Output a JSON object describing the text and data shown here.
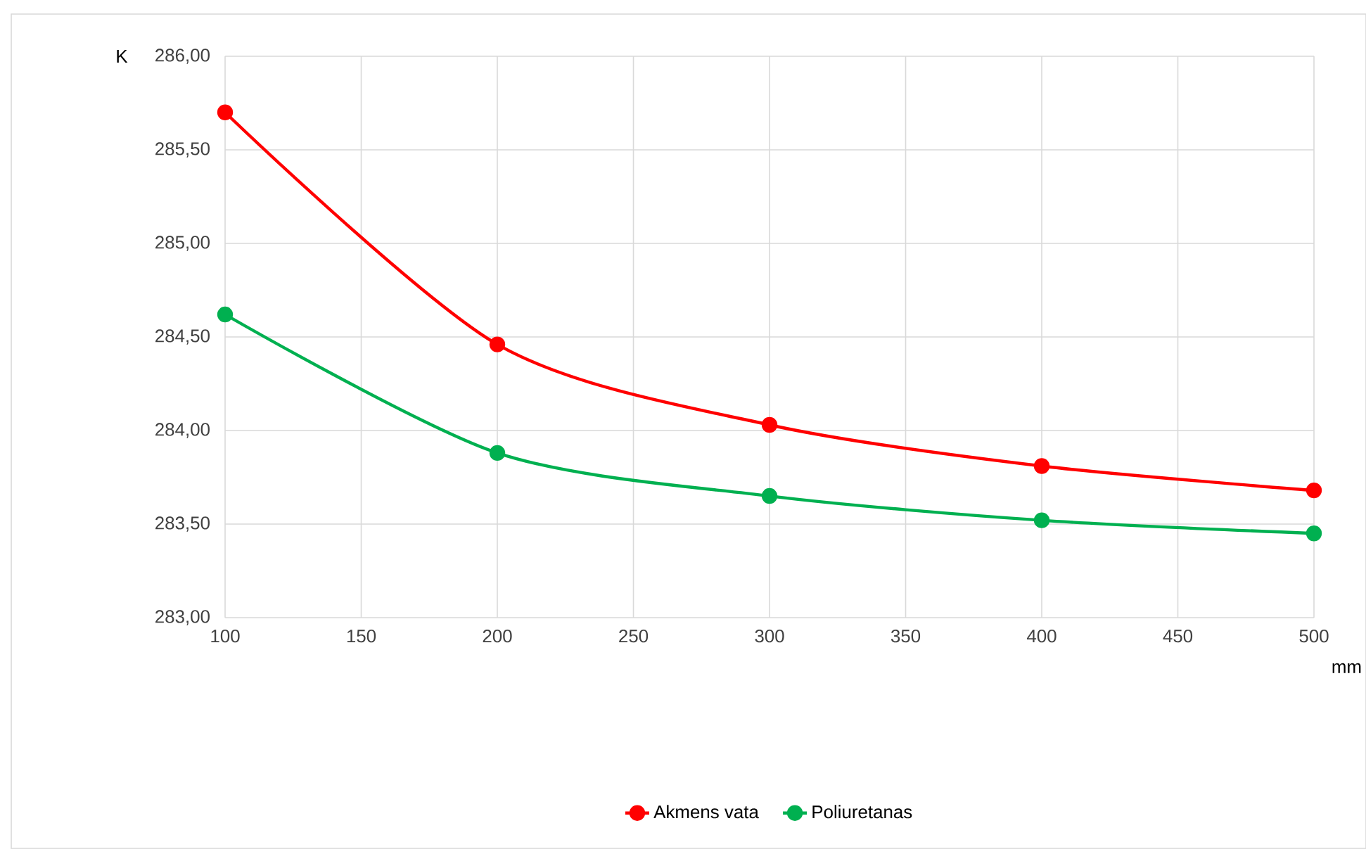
{
  "chart_data": {
    "type": "line",
    "xlabel": "mm",
    "ylabel": "K",
    "x": [
      100,
      200,
      300,
      400,
      500
    ],
    "series": [
      {
        "name": "Akmens vata",
        "color": "#ff0000",
        "values": [
          285.7,
          284.46,
          284.03,
          283.81,
          283.68
        ]
      },
      {
        "name": "Poliuretanas",
        "color": "#00b050",
        "values": [
          284.62,
          283.88,
          283.65,
          283.52,
          283.45
        ]
      }
    ],
    "xlim": [
      100,
      500
    ],
    "xticks": [
      100,
      150,
      200,
      250,
      300,
      350,
      400,
      450,
      500
    ],
    "ylim": [
      283,
      286
    ],
    "yticks": [
      {
        "value": 283,
        "label": "283,00"
      },
      {
        "value": 283.5,
        "label": "283,50"
      },
      {
        "value": 284,
        "label": "284,00"
      },
      {
        "value": 284.5,
        "label": "284,50"
      },
      {
        "value": 285,
        "label": "285,00"
      },
      {
        "value": 285.5,
        "label": "285,50"
      },
      {
        "value": 286,
        "label": "286,00"
      }
    ],
    "grid": true,
    "legend": "bottom",
    "marker": "circle",
    "line_style": "solid"
  }
}
